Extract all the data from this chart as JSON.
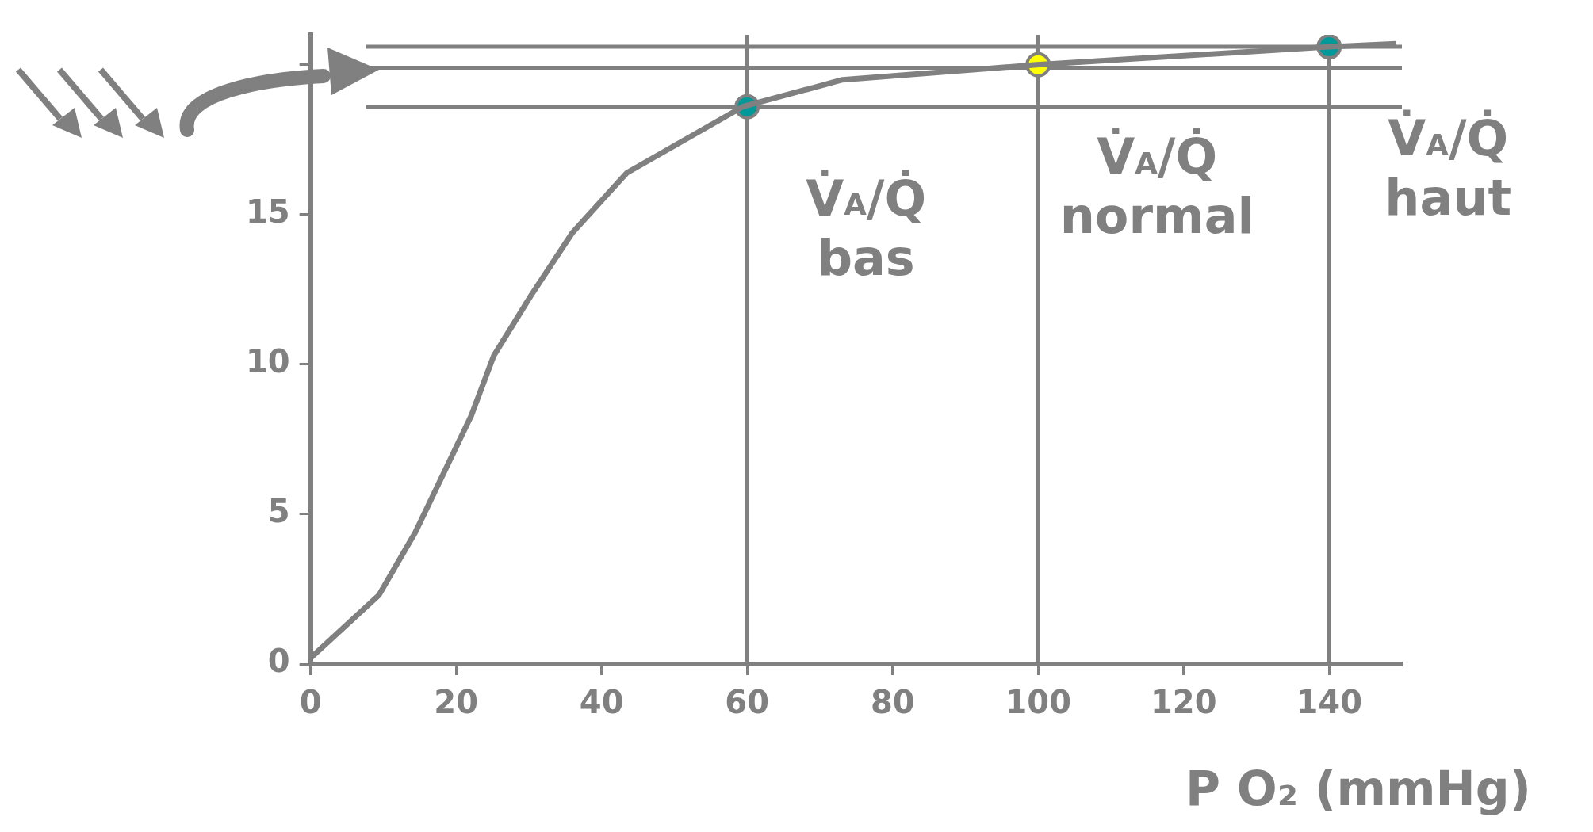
{
  "chart_data": {
    "type": "line",
    "xlabel": "P O₂ (mmHg)",
    "xlim": [
      0,
      150
    ],
    "xticks": [
      0,
      20,
      40,
      60,
      80,
      100,
      120,
      140
    ],
    "ylim": [
      0,
      21
    ],
    "yticks": [
      0,
      5,
      10,
      15,
      {
        "value": 20,
        "label": null
      }
    ],
    "grid": false,
    "legend": false,
    "series": [
      {
        "color": "#808080",
        "marker": "none",
        "x": [
          0,
          9.4,
          14.4,
          22.1,
          25.2,
          30.3,
          36.0,
          43.5,
          59.4,
          73.1,
          99.8,
          139.9,
          149.2
        ],
        "values": [
          0.2,
          2.3,
          4.4,
          8.3,
          10.3,
          12.3,
          14.4,
          16.4,
          18.6,
          19.5,
          20.0,
          20.6,
          20.7
        ]
      },
      {
        "type": "scatter",
        "marker": "circle",
        "x": [
          60,
          100,
          140
        ],
        "values": [
          18.6,
          20.0,
          20.6
        ],
        "colors": [
          "#009999",
          "#ffff00",
          "#009999"
        ]
      }
    ],
    "ref_lines": [
      {
        "axis": "x",
        "value": 60,
        "color": "#808080"
      },
      {
        "axis": "x",
        "value": 100,
        "color": "#808080"
      },
      {
        "axis": "x",
        "value": 140,
        "color": "#808080"
      },
      {
        "axis": "y",
        "value": 18.6,
        "color": "#808080"
      },
      {
        "axis": "y",
        "value": 19.9,
        "color": "#808080"
      },
      {
        "axis": "y",
        "value": 20.6,
        "color": "#808080"
      }
    ],
    "annotations": [
      {
        "text": "V̇$_{A}$/Q̇ bas",
        "x": 60,
        "y": 18.6
      },
      {
        "text": "V̇$_{A}$/Q̇ normal",
        "x": 100,
        "y": 20.0
      },
      {
        "text": "V̇$_{A}$/Q̇ haut",
        "x": 140,
        "y": 20.6
      }
    ]
  }
}
